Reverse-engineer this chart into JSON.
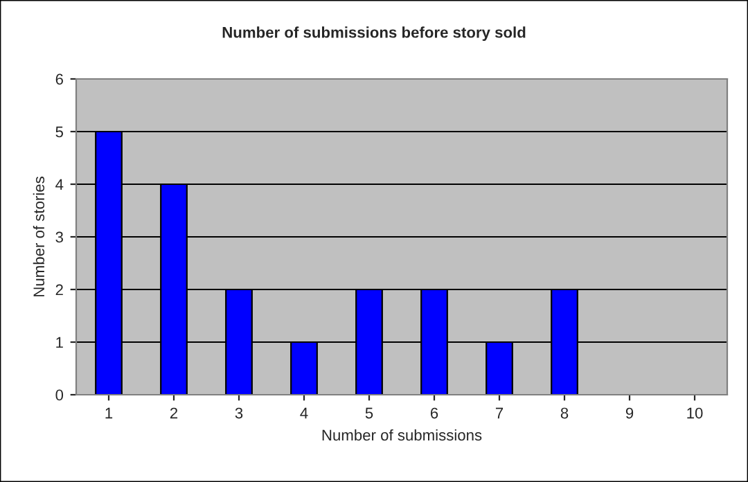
{
  "chart_data": {
    "type": "bar",
    "title": "Number of submissions before story sold",
    "xlabel": "Number of submissions",
    "ylabel": "Number of stories",
    "categories": [
      "1",
      "2",
      "3",
      "4",
      "5",
      "6",
      "7",
      "8",
      "9",
      "10"
    ],
    "values": [
      5,
      4,
      2,
      1,
      2,
      2,
      1,
      2,
      0,
      0
    ],
    "color": "#0000ff",
    "ylim": [
      0,
      6
    ],
    "yticks": [
      0,
      1,
      2,
      3,
      4,
      5,
      6
    ],
    "grid": "y",
    "legend": false
  }
}
